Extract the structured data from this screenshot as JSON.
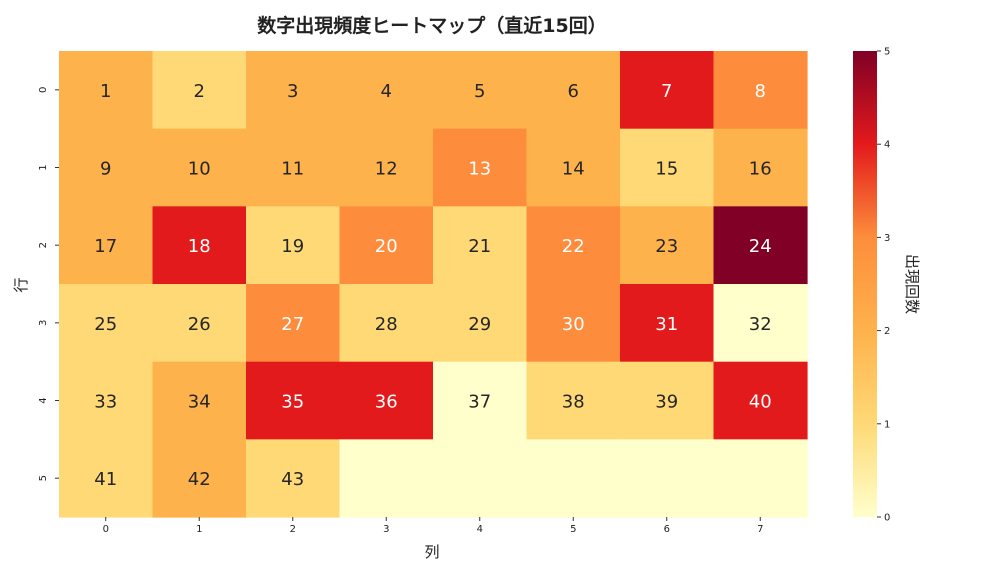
{
  "chart_data": {
    "type": "heatmap",
    "title": "数字出現頻度ヒートマップ（直近15回）",
    "xlabel": "列",
    "ylabel": "行",
    "x_ticks": [
      "0",
      "1",
      "2",
      "3",
      "4",
      "5",
      "6",
      "7"
    ],
    "y_ticks": [
      "0",
      "1",
      "2",
      "3",
      "4",
      "5"
    ],
    "colorbar": {
      "label": "出現回数",
      "range": [
        0,
        5
      ],
      "ticks": [
        "0",
        "1",
        "2",
        "3",
        "4",
        "5"
      ],
      "colormap": "YlOrRd"
    },
    "values": [
      [
        2,
        1,
        2,
        2,
        2,
        2,
        4,
        3
      ],
      [
        2,
        2,
        2,
        2,
        3,
        2,
        1,
        2
      ],
      [
        2,
        4,
        1,
        3,
        1,
        3,
        2,
        5
      ],
      [
        1,
        1,
        3,
        1,
        1,
        3,
        4,
        0
      ],
      [
        1,
        2,
        4,
        4,
        0,
        1,
        1,
        4
      ],
      [
        1,
        2,
        1,
        0,
        0,
        0,
        0,
        0
      ]
    ],
    "labels": [
      [
        "1",
        "2",
        "3",
        "4",
        "5",
        "6",
        "7",
        "8"
      ],
      [
        "9",
        "10",
        "11",
        "12",
        "13",
        "14",
        "15",
        "16"
      ],
      [
        "17",
        "18",
        "19",
        "20",
        "21",
        "22",
        "23",
        "24"
      ],
      [
        "25",
        "26",
        "27",
        "28",
        "29",
        "30",
        "31",
        "32"
      ],
      [
        "33",
        "34",
        "35",
        "36",
        "37",
        "38",
        "39",
        "40"
      ],
      [
        "41",
        "42",
        "43",
        "",
        "",
        "",
        "",
        ""
      ]
    ]
  }
}
